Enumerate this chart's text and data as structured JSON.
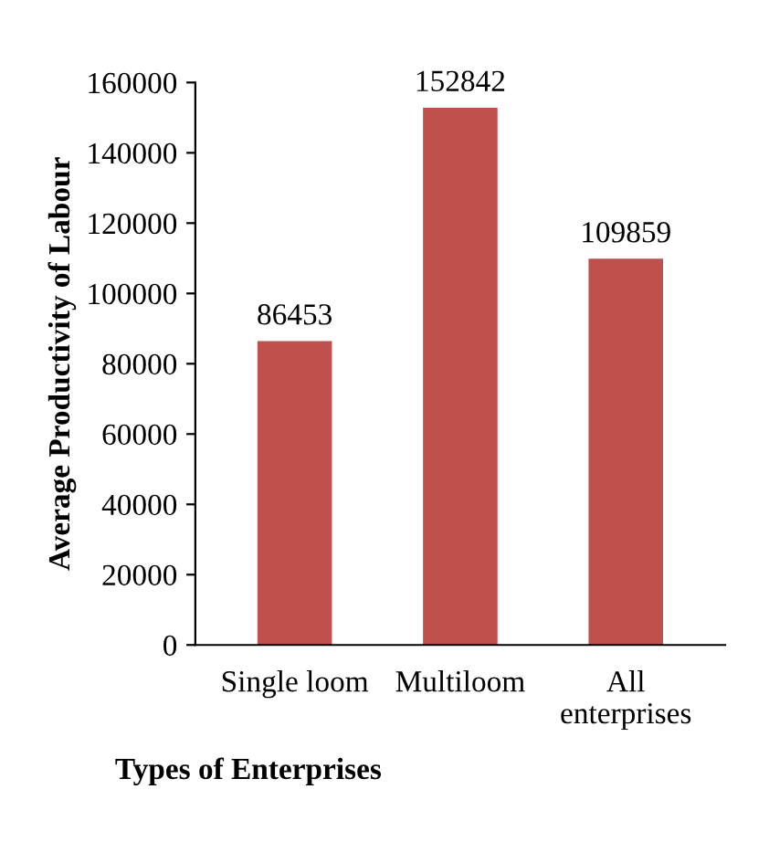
{
  "chart_data": {
    "type": "bar",
    "xlabel": "Types of Enterprises",
    "ylabel": "Average Productivity of Labour",
    "categories": [
      "Single loom",
      "Multiloom",
      "All\nenterprises"
    ],
    "values": [
      86453,
      152842,
      109859
    ],
    "color": "#c0504d",
    "ylim": [
      0,
      160000
    ],
    "yticks": [
      0,
      20000,
      40000,
      60000,
      80000,
      100000,
      120000,
      140000,
      160000
    ],
    "data_labels": true,
    "grid": false,
    "legend": false
  }
}
